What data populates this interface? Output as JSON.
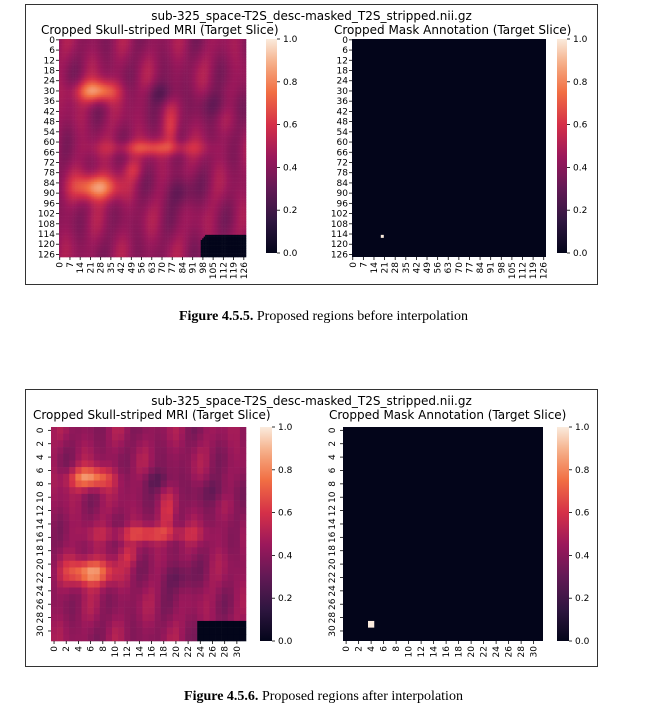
{
  "figures": [
    {
      "title": "sub-325_space-T2S_desc-masked_T2S_stripped.nii.gz",
      "left_title": "Cropped Skull-striped MRI (Target Slice)",
      "right_title": "Cropped Mask Annotation (Target Slice)",
      "caption_bold": "Figure 4.5.5.",
      "caption_text": " Proposed regions before interpolation"
    },
    {
      "title": "sub-325_space-T2S_desc-masked_T2S_stripped.nii.gz",
      "left_title": "Cropped Skull-striped MRI (Target Slice)",
      "right_title": "Cropped Mask Annotation (Target Slice)",
      "caption_bold": "Figure 4.5.6.",
      "caption_text": " Proposed regions after interpolation"
    }
  ],
  "chart_data": [
    {
      "type": "heatmap",
      "title": "Cropped Skull-striped MRI (Target Slice)",
      "grid": "128x128",
      "x_ticks": [
        "0",
        "7",
        "14",
        "21",
        "28",
        "35",
        "42",
        "49",
        "56",
        "63",
        "70",
        "77",
        "84",
        "91",
        "98",
        "105",
        "112",
        "119",
        "126"
      ],
      "y_ticks": [
        "0",
        "6",
        "12",
        "18",
        "24",
        "30",
        "36",
        "42",
        "48",
        "54",
        "60",
        "66",
        "72",
        "78",
        "84",
        "90",
        "96",
        "102",
        "108",
        "114",
        "120",
        "126"
      ],
      "colorbar_ticks": [
        "0.0",
        "0.2",
        "0.4",
        "0.6",
        "0.8",
        "1.0"
      ],
      "colormap": "rocket",
      "value_range": [
        0,
        1
      ]
    },
    {
      "type": "heatmap",
      "title": "Cropped Mask Annotation (Target Slice)",
      "grid": "128x128",
      "x_ticks": [
        "0",
        "7",
        "14",
        "21",
        "28",
        "35",
        "42",
        "49",
        "56",
        "63",
        "70",
        "77",
        "84",
        "91",
        "98",
        "105",
        "112",
        "119",
        "126"
      ],
      "y_ticks": [
        "0",
        "6",
        "12",
        "18",
        "24",
        "30",
        "36",
        "42",
        "48",
        "54",
        "60",
        "66",
        "72",
        "78",
        "84",
        "90",
        "96",
        "102",
        "108",
        "114",
        "120",
        "126"
      ],
      "colorbar_ticks": [
        "0.0",
        "0.2",
        "0.4",
        "0.6",
        "0.8",
        "1.0"
      ],
      "colormap": "rocket",
      "value_range": [
        0,
        1
      ],
      "mask_points": [
        {
          "x": 19,
          "y": 115,
          "value": 1.0
        }
      ]
    },
    {
      "type": "heatmap",
      "title": "Cropped Skull-striped MRI (Target Slice)",
      "grid": "32x32",
      "x_ticks": [
        "0",
        "2",
        "4",
        "6",
        "8",
        "10",
        "12",
        "14",
        "16",
        "18",
        "20",
        "22",
        "24",
        "26",
        "28",
        "30"
      ],
      "y_ticks": [
        "0",
        "2",
        "4",
        "6",
        "8",
        "10",
        "12",
        "14",
        "16",
        "18",
        "20",
        "22",
        "24",
        "26",
        "28",
        "30"
      ],
      "colorbar_ticks": [
        "0.0",
        "0.2",
        "0.4",
        "0.6",
        "0.8",
        "1.0"
      ],
      "colormap": "rocket",
      "value_range": [
        0,
        1
      ]
    },
    {
      "type": "heatmap",
      "title": "Cropped Mask Annotation (Target Slice)",
      "grid": "32x32",
      "x_ticks": [
        "0",
        "2",
        "4",
        "6",
        "8",
        "10",
        "12",
        "14",
        "16",
        "18",
        "20",
        "22",
        "24",
        "26",
        "28",
        "30"
      ],
      "y_ticks": [
        "0",
        "2",
        "4",
        "6",
        "8",
        "10",
        "12",
        "14",
        "16",
        "18",
        "20",
        "22",
        "24",
        "26",
        "28",
        "30"
      ],
      "colorbar_ticks": [
        "0.0",
        "0.2",
        "0.4",
        "0.6",
        "0.8",
        "1.0"
      ],
      "colormap": "rocket",
      "value_range": [
        0,
        1
      ],
      "mask_points": [
        {
          "x": 4,
          "y": 29,
          "value": 1.0
        }
      ]
    }
  ]
}
